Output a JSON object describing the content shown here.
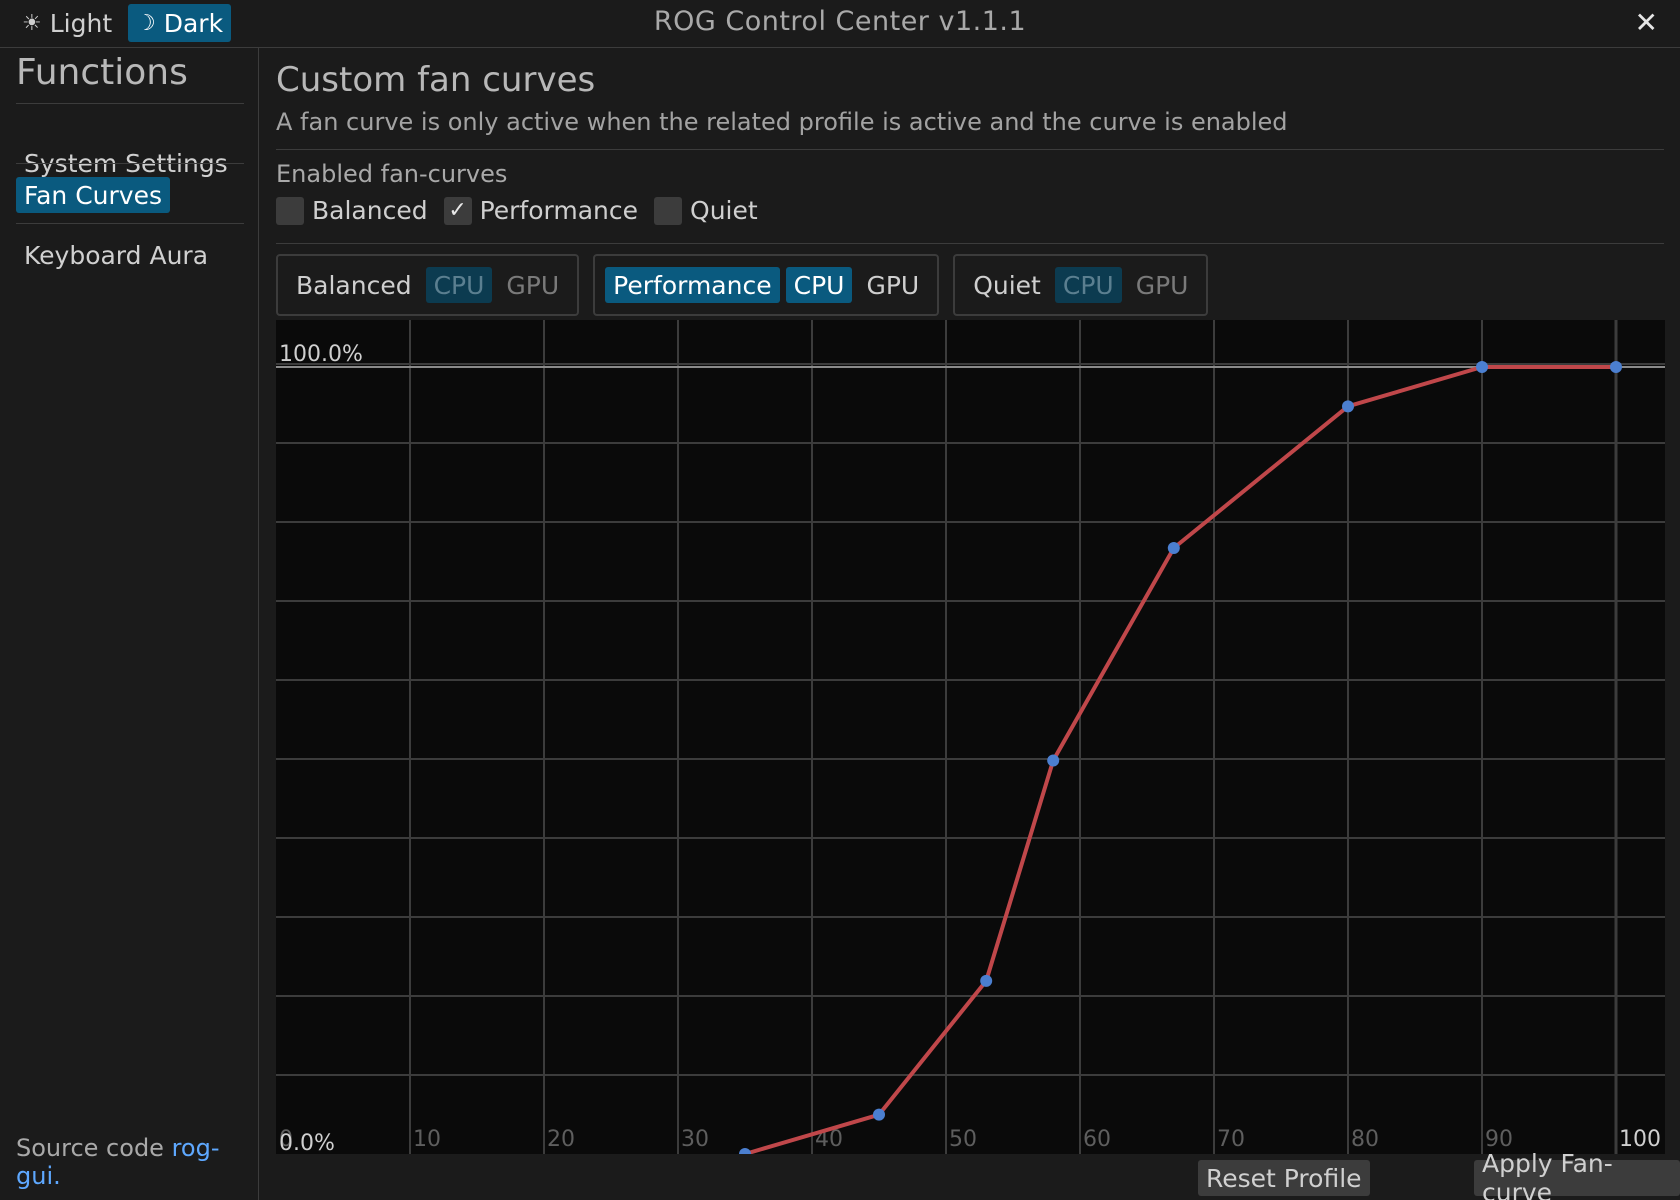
{
  "header": {
    "light_label": "Light",
    "dark_label": "Dark",
    "light_icon": "☀",
    "dark_icon": "☽",
    "title": "ROG Control Center v1.1.1",
    "close_icon": "✕"
  },
  "sidebar": {
    "heading": "Functions",
    "items": [
      {
        "label": "System Settings",
        "active": false
      },
      {
        "label": "Fan Curves",
        "active": true
      },
      {
        "label": "Keyboard Aura",
        "active": false
      }
    ],
    "source_prefix": "Source code ",
    "source_link": "rog-gui."
  },
  "main": {
    "title": "Custom fan curves",
    "description": "A fan curve is only active when the related profile is active and the curve is enabled",
    "enabled_label": "Enabled fan-curves",
    "checkboxes": [
      {
        "label": "Balanced",
        "checked": false
      },
      {
        "label": "Performance",
        "checked": true,
        "check_glyph": "✓"
      },
      {
        "label": "Quiet",
        "checked": false
      }
    ],
    "profiles": [
      {
        "label": "Balanced",
        "cpu": "CPU",
        "gpu": "GPU",
        "selected": false
      },
      {
        "label": "Performance",
        "cpu": "CPU",
        "gpu": "GPU",
        "selected": true
      },
      {
        "label": "Quiet",
        "cpu": "CPU",
        "gpu": "GPU",
        "selected": false
      }
    ],
    "reset_label": "Reset Profile",
    "apply_label": "Apply Fan-curve"
  },
  "colors": {
    "accent": "#0a5a7f",
    "curve": "#c0474a",
    "point": "#4b7fd0",
    "grid": "#3c3c3c",
    "plot_bg": "#0a0a0a"
  },
  "chart_data": {
    "type": "line",
    "title": "",
    "xlabel": "",
    "ylabel": "",
    "xlim": [
      0,
      100
    ],
    "ylim": [
      0,
      100
    ],
    "x_ticks": [
      "0",
      "10",
      "20",
      "30",
      "40",
      "50",
      "60",
      "70",
      "80",
      "90",
      "100"
    ],
    "y_labels": [
      "100.0%",
      "0.0%"
    ],
    "grid": true,
    "series": [
      {
        "x": [
          35,
          45,
          53,
          58,
          67,
          80,
          90,
          100
        ],
        "y": [
          0,
          5,
          22,
          50,
          77,
          95,
          100,
          100
        ]
      }
    ]
  }
}
